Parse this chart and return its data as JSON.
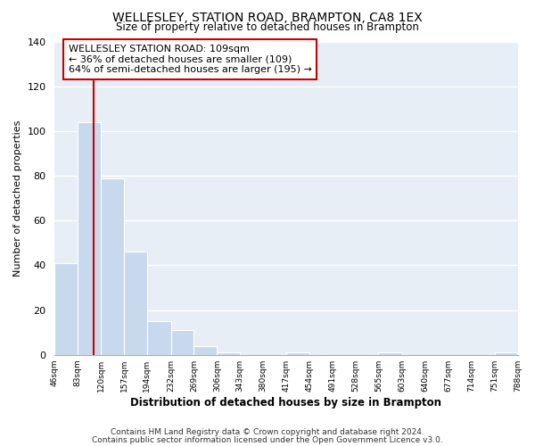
{
  "title": "WELLESLEY, STATION ROAD, BRAMPTON, CA8 1EX",
  "subtitle": "Size of property relative to detached houses in Brampton",
  "xlabel": "Distribution of detached houses by size in Brampton",
  "ylabel": "Number of detached properties",
  "bar_edges": [
    46,
    83,
    120,
    157,
    194,
    232,
    269,
    306,
    343,
    380,
    417,
    454,
    491,
    528,
    565,
    603,
    640,
    677,
    714,
    751,
    788
  ],
  "bar_heights": [
    41,
    104,
    79,
    46,
    15,
    11,
    4,
    1,
    0,
    0,
    1,
    0,
    0,
    0,
    1,
    0,
    0,
    0,
    0,
    1
  ],
  "bar_color": "#c8d9ee",
  "bar_edge_color": "#ffffff",
  "vline_x": 109,
  "vline_color": "#cc0000",
  "ylim": [
    0,
    140
  ],
  "yticks": [
    0,
    20,
    40,
    60,
    80,
    100,
    120,
    140
  ],
  "annotation_title": "WELLESLEY STATION ROAD: 109sqm",
  "annotation_line1": "← 36% of detached houses are smaller (109)",
  "annotation_line2": "64% of semi-detached houses are larger (195) →",
  "footer1": "Contains HM Land Registry data © Crown copyright and database right 2024.",
  "footer2": "Contains public sector information licensed under the Open Government Licence v3.0.",
  "background_color": "#ffffff",
  "plot_bg_color": "#e8eef5",
  "grid_color": "#ffffff",
  "tick_labels": [
    "46sqm",
    "83sqm",
    "120sqm",
    "157sqm",
    "194sqm",
    "232sqm",
    "269sqm",
    "306sqm",
    "343sqm",
    "380sqm",
    "417sqm",
    "454sqm",
    "491sqm",
    "528sqm",
    "565sqm",
    "603sqm",
    "640sqm",
    "677sqm",
    "714sqm",
    "751sqm",
    "788sqm"
  ]
}
